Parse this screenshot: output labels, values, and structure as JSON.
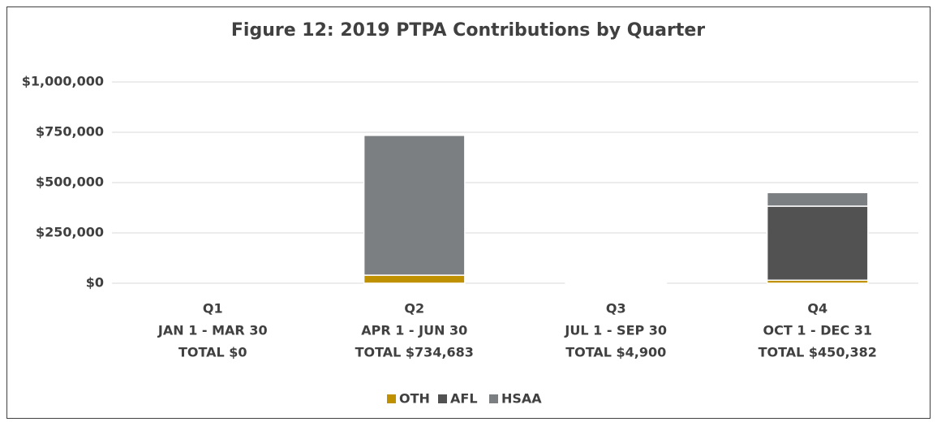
{
  "chart_data": {
    "type": "stacked_bar",
    "title": "Figure 12: 2019 PTPA Contributions by Quarter",
    "categories": [
      [
        "Q1",
        "JAN 1 - MAR 30",
        "TOTAL $0"
      ],
      [
        "Q2",
        "APR 1 - JUN 30",
        "TOTAL $734,683"
      ],
      [
        "Q3",
        "JUL 1 - SEP 30",
        "TOTAL $4,900"
      ],
      [
        "Q4",
        "OCT 1 - DEC 31",
        "TOTAL $450,382"
      ]
    ],
    "series": [
      {
        "name": "OTH",
        "color": "#bf9000",
        "values": [
          0,
          40000,
          4900,
          15000
        ]
      },
      {
        "name": "AFL",
        "color": "#525252",
        "values": [
          0,
          0,
          0,
          368000
        ]
      },
      {
        "name": "HSAA",
        "color": "#7b7f82",
        "values": [
          0,
          694683,
          0,
          67382
        ]
      }
    ],
    "ylim": [
      0,
      1000000
    ],
    "yticks": [
      {
        "value": 0,
        "label": "$0"
      },
      {
        "value": 250000,
        "label": "$250,000"
      },
      {
        "value": 500000,
        "label": "$500,000"
      },
      {
        "value": 750000,
        "label": "$750,000"
      },
      {
        "value": 1000000,
        "label": "$1,000,000"
      }
    ],
    "grid": true,
    "legend": "bottom"
  }
}
